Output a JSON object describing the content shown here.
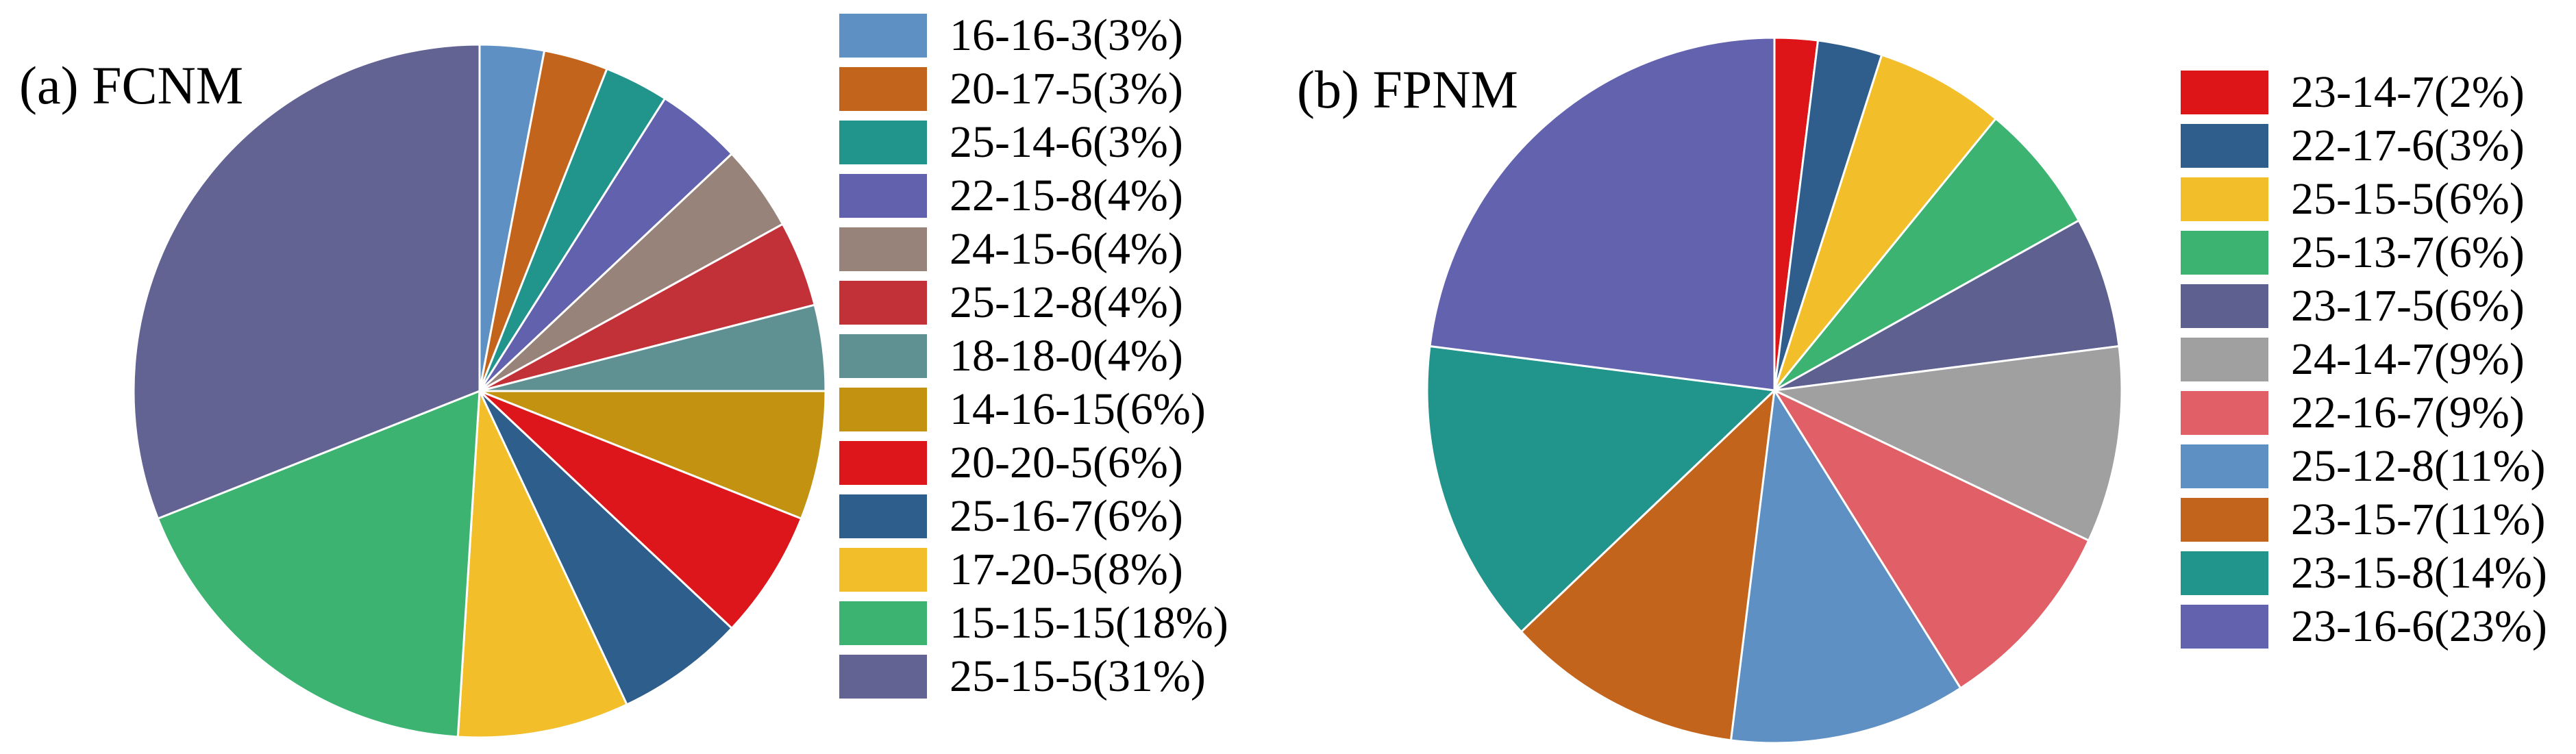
{
  "chart_data": [
    {
      "type": "pie",
      "title": "(a) FCNM",
      "legend_position": "right",
      "start_angle": "top",
      "direction": "clockwise",
      "labels": [
        "16-16-3(3%)",
        "20-17-5(3%)",
        "25-14-6(3%)",
        "22-15-8(4%)",
        "24-15-6(4%)",
        "25-12-8(4%)",
        "18-18-0(4%)",
        "14-16-15(6%)",
        "20-20-5(6%)",
        "25-16-7(6%)",
        "17-20-5(8%)",
        "15-15-15(18%)",
        "25-15-5(31%)"
      ],
      "values": [
        3,
        3,
        3,
        4,
        4,
        4,
        4,
        6,
        6,
        6,
        8,
        18,
        31
      ],
      "colors": [
        "#5E90C4",
        "#C2641B",
        "#21948B",
        "#6161AE",
        "#97837A",
        "#C23138",
        "#5F9193",
        "#C29210",
        "#DD161C",
        "#2E5E8C",
        "#F2BF2B",
        "#3CB371",
        "#626293"
      ]
    },
    {
      "type": "pie",
      "title": "(b) FPNM",
      "legend_position": "right",
      "start_angle": "top",
      "direction": "clockwise",
      "labels": [
        "23-14-7(2%)",
        "22-17-6(3%)",
        "25-15-5(6%)",
        "25-13-7(6%)",
        "23-17-5(6%)",
        "24-14-7(9%)",
        "22-16-7(9%)",
        "25-12-8(11%)",
        "23-15-7(11%)",
        "23-15-8(14%)",
        "23-16-6(23%)"
      ],
      "values": [
        2,
        3,
        6,
        6,
        6,
        9,
        9,
        11,
        11,
        14,
        23
      ],
      "colors": [
        "#DD1418",
        "#2F5E8C",
        "#F2BF2B",
        "#3CB371",
        "#5E6090",
        "#A1A0A0",
        "#E15F66",
        "#5E90C4",
        "#C2641B",
        "#21948B",
        "#6262AE"
      ]
    }
  ]
}
